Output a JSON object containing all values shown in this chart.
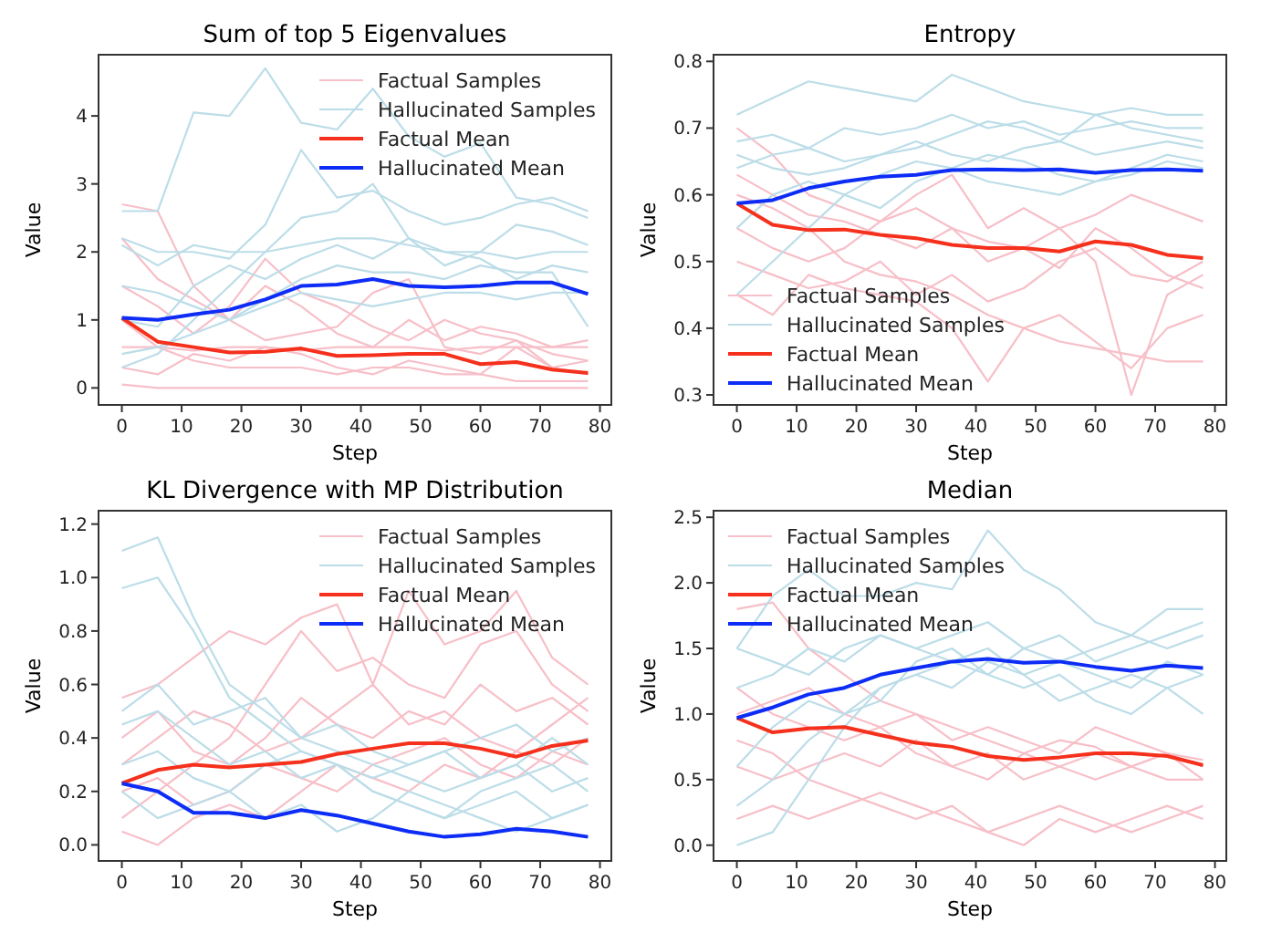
{
  "chart_data": [
    {
      "type": "line",
      "title": "Sum of top 5 Eigenvalues",
      "xlabel": "Step",
      "ylabel": "Value",
      "x": [
        0,
        6,
        12,
        18,
        24,
        30,
        36,
        42,
        48,
        54,
        60,
        66,
        72,
        78
      ],
      "xlim": [
        -3.9,
        81.9
      ],
      "xticks": [
        0,
        10,
        20,
        30,
        40,
        50,
        60,
        70,
        80
      ],
      "ylim": [
        -0.25,
        4.9
      ],
      "yticks": [
        0,
        1,
        2,
        3,
        4
      ],
      "legend": "top right",
      "grid": false,
      "series": [
        {
          "name": "Factual Samples",
          "color": "#f7bfc8",
          "values": [
            2.7,
            2.6,
            1.5,
            1.0,
            1.5,
            1.2,
            0.8,
            0.6,
            1.0,
            0.7,
            0.9,
            0.8,
            0.6,
            0.7
          ]
        },
        {
          "color": "#f7bfc8",
          "values": [
            2.2,
            1.6,
            1.3,
            1.0,
            0.7,
            0.8,
            0.9,
            1.4,
            1.6,
            0.6,
            0.5,
            0.7,
            0.3,
            0.4
          ]
        },
        {
          "color": "#f7bfc8",
          "values": [
            1.0,
            0.6,
            0.4,
            0.3,
            0.3,
            0.3,
            0.2,
            0.3,
            0.3,
            0.2,
            0.2,
            0.1,
            0.1,
            0.1
          ]
        },
        {
          "color": "#f7bfc8",
          "values": [
            0.6,
            0.6,
            0.55,
            0.6,
            0.6,
            0.55,
            0.6,
            0.6,
            0.6,
            0.55,
            0.6,
            0.6,
            0.6,
            0.6
          ]
        },
        {
          "color": "#f7bfc8",
          "values": [
            0.05,
            0.0,
            0.0,
            0.0,
            0.0,
            0.0,
            0.0,
            0.0,
            0.0,
            0.0,
            0.0,
            0.0,
            0.0,
            0.0
          ]
        },
        {
          "color": "#f7bfc8",
          "values": [
            1.5,
            1.2,
            0.8,
            1.2,
            1.9,
            1.4,
            1.2,
            0.9,
            0.7,
            1.0,
            0.8,
            0.7,
            0.5,
            0.4
          ]
        },
        {
          "color": "#f7bfc8",
          "values": [
            0.3,
            0.2,
            0.5,
            0.4,
            0.6,
            0.5,
            0.3,
            0.2,
            0.4,
            0.3,
            0.2,
            0.6,
            0.3,
            0.2
          ]
        },
        {
          "name": "Hallucinated Samples",
          "color": "#bcdde8",
          "values": [
            2.6,
            2.6,
            4.05,
            4.0,
            4.7,
            3.9,
            3.8,
            4.4,
            3.7,
            3.4,
            3.6,
            2.8,
            2.7,
            2.5
          ]
        },
        {
          "color": "#bcdde8",
          "values": [
            2.2,
            2.0,
            2.0,
            1.9,
            2.4,
            3.5,
            2.8,
            2.9,
            2.6,
            2.4,
            2.5,
            2.7,
            2.8,
            2.6
          ]
        },
        {
          "color": "#bcdde8",
          "values": [
            2.1,
            1.8,
            2.1,
            2.0,
            2.0,
            2.1,
            2.2,
            2.2,
            2.1,
            2.0,
            2.0,
            1.9,
            2.0,
            2.0
          ]
        },
        {
          "color": "#bcdde8",
          "values": [
            0.3,
            0.5,
            1.0,
            1.5,
            2.0,
            2.5,
            2.6,
            3.0,
            2.2,
            1.8,
            2.0,
            2.4,
            2.3,
            2.1
          ]
        },
        {
          "color": "#bcdde8",
          "values": [
            1.5,
            1.4,
            1.2,
            1.0,
            1.2,
            1.4,
            1.3,
            1.2,
            1.3,
            1.4,
            1.4,
            1.3,
            1.4,
            1.4
          ]
        },
        {
          "color": "#bcdde8",
          "values": [
            0.5,
            0.6,
            0.8,
            1.0,
            1.3,
            1.6,
            1.8,
            1.7,
            1.7,
            1.6,
            1.8,
            1.7,
            1.7,
            0.9
          ]
        },
        {
          "color": "#bcdde8",
          "values": [
            1.0,
            0.9,
            1.5,
            1.8,
            1.6,
            1.9,
            2.1,
            1.9,
            2.2,
            2.0,
            1.9,
            1.6,
            1.8,
            1.7
          ]
        },
        {
          "name": "Factual Mean",
          "color": "#f5301c",
          "values": [
            1.03,
            0.68,
            0.6,
            0.52,
            0.53,
            0.58,
            0.47,
            0.48,
            0.5,
            0.5,
            0.35,
            0.38,
            0.27,
            0.22
          ]
        },
        {
          "name": "Hallucinated Mean",
          "color": "#0d2cf5",
          "values": [
            1.03,
            1.0,
            1.08,
            1.15,
            1.3,
            1.5,
            1.52,
            1.6,
            1.5,
            1.48,
            1.5,
            1.55,
            1.55,
            1.38
          ]
        }
      ]
    },
    {
      "type": "line",
      "title": "Entropy",
      "xlabel": "Step",
      "ylabel": "Value",
      "x": [
        0,
        6,
        12,
        18,
        24,
        30,
        36,
        42,
        48,
        54,
        60,
        66,
        72,
        78
      ],
      "xlim": [
        -3.9,
        81.9
      ],
      "xticks": [
        0,
        10,
        20,
        30,
        40,
        50,
        60,
        70,
        80
      ],
      "ylim": [
        0.285,
        0.81
      ],
      "yticks": [
        {
          "value": 0.3,
          "label": "0.3"
        },
        {
          "value": 0.4,
          "label": "0.4"
        },
        {
          "value": 0.5,
          "label": "0.5"
        },
        {
          "value": 0.6,
          "label": "0.6"
        },
        {
          "value": 0.7,
          "label": "0.7"
        },
        {
          "value": 0.8,
          "label": "0.8"
        }
      ],
      "legend": "bottom left",
      "grid": false,
      "series": [
        {
          "name": "Factual Samples",
          "color": "#f7bfc8",
          "values": [
            0.7,
            0.66,
            0.6,
            0.58,
            0.56,
            0.6,
            0.63,
            0.55,
            0.58,
            0.55,
            0.57,
            0.6,
            0.58,
            0.56
          ]
        },
        {
          "color": "#f7bfc8",
          "values": [
            0.45,
            0.42,
            0.48,
            0.46,
            0.45,
            0.44,
            0.4,
            0.32,
            0.4,
            0.42,
            0.38,
            0.34,
            0.4,
            0.42
          ]
        },
        {
          "color": "#f7bfc8",
          "values": [
            0.6,
            0.58,
            0.55,
            0.5,
            0.48,
            0.47,
            0.45,
            0.42,
            0.4,
            0.38,
            0.37,
            0.36,
            0.35,
            0.35
          ]
        },
        {
          "color": "#f7bfc8",
          "values": [
            0.55,
            0.52,
            0.5,
            0.52,
            0.56,
            0.58,
            0.55,
            0.5,
            0.52,
            0.55,
            0.5,
            0.3,
            0.45,
            0.48
          ]
        },
        {
          "color": "#f7bfc8",
          "values": [
            0.63,
            0.6,
            0.57,
            0.56,
            0.54,
            0.52,
            0.55,
            0.53,
            0.52,
            0.49,
            0.55,
            0.52,
            0.48,
            0.46
          ]
        },
        {
          "color": "#f7bfc8",
          "values": [
            0.5,
            0.48,
            0.46,
            0.47,
            0.5,
            0.45,
            0.48,
            0.44,
            0.46,
            0.5,
            0.52,
            0.48,
            0.47,
            0.5
          ]
        },
        {
          "name": "Hallucinated Samples",
          "color": "#bcdde8",
          "values": [
            0.72,
            0.745,
            0.77,
            0.76,
            0.75,
            0.74,
            0.78,
            0.76,
            0.74,
            0.73,
            0.72,
            0.73,
            0.72,
            0.72
          ]
        },
        {
          "color": "#bcdde8",
          "values": [
            0.68,
            0.69,
            0.67,
            0.7,
            0.69,
            0.7,
            0.72,
            0.7,
            0.71,
            0.69,
            0.7,
            0.71,
            0.7,
            0.7
          ]
        },
        {
          "color": "#bcdde8",
          "values": [
            0.64,
            0.66,
            0.67,
            0.65,
            0.66,
            0.68,
            0.66,
            0.65,
            0.67,
            0.68,
            0.66,
            0.67,
            0.68,
            0.67
          ]
        },
        {
          "color": "#bcdde8",
          "values": [
            0.45,
            0.5,
            0.55,
            0.6,
            0.58,
            0.62,
            0.64,
            0.66,
            0.65,
            0.63,
            0.62,
            0.64,
            0.66,
            0.65
          ]
        },
        {
          "color": "#bcdde8",
          "values": [
            0.55,
            0.6,
            0.62,
            0.6,
            0.63,
            0.65,
            0.64,
            0.62,
            0.61,
            0.6,
            0.62,
            0.63,
            0.65,
            0.64
          ]
        },
        {
          "color": "#bcdde8",
          "values": [
            0.66,
            0.64,
            0.63,
            0.64,
            0.66,
            0.67,
            0.69,
            0.71,
            0.7,
            0.68,
            0.72,
            0.7,
            0.69,
            0.68
          ]
        },
        {
          "name": "Factual Mean",
          "color": "#f5301c",
          "values": [
            0.587,
            0.555,
            0.547,
            0.548,
            0.54,
            0.535,
            0.525,
            0.52,
            0.52,
            0.515,
            0.53,
            0.525,
            0.51,
            0.505
          ]
        },
        {
          "name": "Hallucinated Mean",
          "color": "#0d2cf5",
          "values": [
            0.587,
            0.592,
            0.61,
            0.62,
            0.627,
            0.63,
            0.637,
            0.638,
            0.637,
            0.638,
            0.633,
            0.637,
            0.638,
            0.636
          ]
        }
      ]
    },
    {
      "type": "line",
      "title": "KL Divergence with MP Distribution",
      "xlabel": "Step",
      "ylabel": "Value",
      "x": [
        0,
        6,
        12,
        18,
        24,
        30,
        36,
        42,
        48,
        54,
        60,
        66,
        72,
        78
      ],
      "xlim": [
        -3.9,
        81.9
      ],
      "xticks": [
        0,
        10,
        20,
        30,
        40,
        50,
        60,
        70,
        80
      ],
      "ylim": [
        -0.06,
        1.25
      ],
      "yticks": [
        {
          "value": 0,
          "label": "0.0"
        },
        {
          "value": 0.2,
          "label": "0.2"
        },
        {
          "value": 0.4,
          "label": "0.4"
        },
        {
          "value": 0.6,
          "label": "0.6"
        },
        {
          "value": 0.8,
          "label": "0.8"
        },
        {
          "value": 1,
          "label": "1.0"
        },
        {
          "value": 1.2,
          "label": "1.2"
        }
      ],
      "legend": "top right",
      "grid": false,
      "series": [
        {
          "name": "Factual Samples",
          "color": "#f7bfc8",
          "values": [
            0.55,
            0.6,
            0.7,
            0.8,
            0.75,
            0.85,
            0.9,
            0.6,
            0.95,
            0.75,
            0.8,
            0.95,
            0.7,
            0.6
          ]
        },
        {
          "color": "#f7bfc8",
          "values": [
            0.1,
            0.2,
            0.3,
            0.4,
            0.6,
            0.8,
            0.65,
            0.7,
            0.6,
            0.55,
            0.75,
            0.8,
            0.6,
            0.5
          ]
        },
        {
          "color": "#f7bfc8",
          "values": [
            0.05,
            0.0,
            0.1,
            0.15,
            0.1,
            0.2,
            0.3,
            0.25,
            0.2,
            0.3,
            0.25,
            0.35,
            0.3,
            0.4
          ]
        },
        {
          "color": "#f7bfc8",
          "values": [
            0.3,
            0.4,
            0.5,
            0.45,
            0.35,
            0.4,
            0.5,
            0.6,
            0.45,
            0.5,
            0.4,
            0.35,
            0.45,
            0.55
          ]
        },
        {
          "color": "#f7bfc8",
          "values": [
            0.2,
            0.25,
            0.15,
            0.2,
            0.3,
            0.25,
            0.2,
            0.3,
            0.35,
            0.4,
            0.3,
            0.25,
            0.35,
            0.3
          ]
        },
        {
          "color": "#f7bfc8",
          "values": [
            0.4,
            0.5,
            0.35,
            0.3,
            0.4,
            0.55,
            0.45,
            0.4,
            0.5,
            0.45,
            0.6,
            0.5,
            0.55,
            0.45
          ]
        },
        {
          "name": "Hallucinated Samples",
          "color": "#bcdde8",
          "values": [
            1.1,
            1.15,
            0.85,
            0.6,
            0.5,
            0.4,
            0.35,
            0.3,
            0.25,
            0.2,
            0.25,
            0.3,
            0.2,
            0.25
          ]
        },
        {
          "color": "#bcdde8",
          "values": [
            0.96,
            1.0,
            0.8,
            0.55,
            0.45,
            0.35,
            0.3,
            0.2,
            0.15,
            0.1,
            0.15,
            0.2,
            0.1,
            0.15
          ]
        },
        {
          "color": "#bcdde8",
          "values": [
            0.45,
            0.5,
            0.4,
            0.3,
            0.35,
            0.25,
            0.3,
            0.2,
            0.15,
            0.1,
            0.2,
            0.25,
            0.3,
            0.2
          ]
        },
        {
          "color": "#bcdde8",
          "values": [
            0.3,
            0.35,
            0.25,
            0.2,
            0.3,
            0.35,
            0.3,
            0.25,
            0.3,
            0.35,
            0.25,
            0.3,
            0.4,
            0.3
          ]
        },
        {
          "color": "#bcdde8",
          "values": [
            0.2,
            0.1,
            0.15,
            0.2,
            0.1,
            0.15,
            0.05,
            0.1,
            0.2,
            0.15,
            0.1,
            0.05,
            0.1,
            0.15
          ]
        },
        {
          "color": "#bcdde8",
          "values": [
            0.5,
            0.6,
            0.45,
            0.5,
            0.55,
            0.4,
            0.45,
            0.35,
            0.3,
            0.35,
            0.4,
            0.45,
            0.35,
            0.4
          ]
        },
        {
          "name": "Factual Mean",
          "color": "#f5301c",
          "values": [
            0.23,
            0.28,
            0.3,
            0.29,
            0.3,
            0.31,
            0.34,
            0.36,
            0.38,
            0.38,
            0.36,
            0.33,
            0.37,
            0.39
          ]
        },
        {
          "name": "Hallucinated Mean",
          "color": "#0d2cf5",
          "values": [
            0.23,
            0.2,
            0.12,
            0.12,
            0.1,
            0.13,
            0.11,
            0.08,
            0.05,
            0.03,
            0.04,
            0.06,
            0.05,
            0.03
          ]
        }
      ]
    },
    {
      "type": "line",
      "title": "Median",
      "xlabel": "Step",
      "ylabel": "Value",
      "x": [
        0,
        6,
        12,
        18,
        24,
        30,
        36,
        42,
        48,
        54,
        60,
        66,
        72,
        78
      ],
      "xlim": [
        -3.9,
        81.9
      ],
      "xticks": [
        0,
        10,
        20,
        30,
        40,
        50,
        60,
        70,
        80
      ],
      "ylim": [
        -0.12,
        2.55
      ],
      "yticks": [
        {
          "value": 0,
          "label": "0.0"
        },
        {
          "value": 0.5,
          "label": "0.5"
        },
        {
          "value": 1,
          "label": "1.0"
        },
        {
          "value": 1.5,
          "label": "1.5"
        },
        {
          "value": 2,
          "label": "2.0"
        },
        {
          "value": 2.5,
          "label": "2.5"
        }
      ],
      "legend": "top left",
      "grid": false,
      "series": [
        {
          "name": "Factual Samples",
          "color": "#f7bfc8",
          "values": [
            1.8,
            1.85,
            1.5,
            1.3,
            1.1,
            1.0,
            0.9,
            0.8,
            0.7,
            0.8,
            0.75,
            0.6,
            0.7,
            0.65
          ]
        },
        {
          "color": "#f7bfc8",
          "values": [
            0.2,
            0.3,
            0.2,
            0.3,
            0.4,
            0.3,
            0.2,
            0.1,
            0.0,
            0.2,
            0.1,
            0.2,
            0.3,
            0.2
          ]
        },
        {
          "color": "#f7bfc8",
          "values": [
            1.2,
            1.0,
            0.9,
            0.8,
            0.9,
            0.7,
            0.6,
            0.7,
            0.5,
            0.6,
            0.7,
            0.6,
            0.5,
            0.5
          ]
        },
        {
          "color": "#f7bfc8",
          "values": [
            0.8,
            0.7,
            0.5,
            0.4,
            0.3,
            0.2,
            0.3,
            0.1,
            0.2,
            0.3,
            0.2,
            0.1,
            0.2,
            0.3
          ]
        },
        {
          "color": "#f7bfc8",
          "values": [
            1.0,
            1.1,
            1.2,
            1.0,
            0.9,
            1.0,
            0.8,
            0.9,
            0.8,
            0.7,
            0.9,
            0.8,
            0.7,
            0.6
          ]
        },
        {
          "color": "#f7bfc8",
          "values": [
            0.6,
            0.5,
            0.6,
            0.7,
            0.6,
            0.8,
            0.6,
            0.5,
            0.7,
            0.6,
            0.5,
            0.6,
            0.7,
            0.5
          ]
        },
        {
          "name": "Hallucinated Samples",
          "color": "#bcdde8",
          "values": [
            1.5,
            1.9,
            2.1,
            1.9,
            1.9,
            2.0,
            1.95,
            2.4,
            2.1,
            1.95,
            1.7,
            1.6,
            1.8,
            1.8
          ]
        },
        {
          "color": "#bcdde8",
          "values": [
            0.0,
            0.1,
            0.5,
            0.9,
            1.2,
            1.3,
            1.4,
            1.5,
            1.3,
            1.4,
            1.3,
            1.2,
            1.4,
            1.3
          ]
        },
        {
          "color": "#bcdde8",
          "values": [
            1.5,
            1.4,
            1.3,
            1.5,
            1.6,
            1.5,
            1.4,
            1.3,
            1.5,
            1.6,
            1.4,
            1.5,
            1.6,
            1.7
          ]
        },
        {
          "color": "#bcdde8",
          "values": [
            0.6,
            0.9,
            1.1,
            1.0,
            1.2,
            1.3,
            1.2,
            1.4,
            1.3,
            1.1,
            1.2,
            1.3,
            1.2,
            1.0
          ]
        },
        {
          "color": "#bcdde8",
          "values": [
            1.2,
            1.3,
            1.5,
            1.4,
            1.6,
            1.5,
            1.6,
            1.7,
            1.5,
            1.4,
            1.5,
            1.6,
            1.5,
            1.6
          ]
        },
        {
          "color": "#bcdde8",
          "values": [
            0.3,
            0.5,
            0.8,
            1.0,
            1.1,
            1.4,
            1.5,
            1.3,
            1.2,
            1.3,
            1.1,
            1.0,
            1.2,
            1.3
          ]
        },
        {
          "name": "Factual Mean",
          "color": "#f5301c",
          "values": [
            0.97,
            0.86,
            0.89,
            0.9,
            0.84,
            0.78,
            0.75,
            0.68,
            0.65,
            0.67,
            0.7,
            0.7,
            0.68,
            0.61
          ]
        },
        {
          "name": "Hallucinated Mean",
          "color": "#0d2cf5",
          "values": [
            0.97,
            1.05,
            1.15,
            1.2,
            1.3,
            1.35,
            1.4,
            1.42,
            1.39,
            1.4,
            1.36,
            1.33,
            1.37,
            1.35
          ]
        }
      ]
    }
  ]
}
